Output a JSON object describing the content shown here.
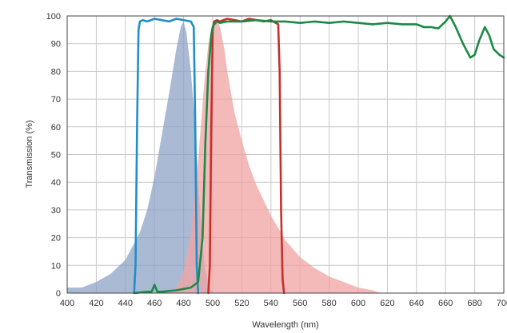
{
  "chart_data": {
    "type": "area",
    "xlabel": "Wavelength (nm)",
    "ylabel": "Transmission (%)",
    "xlim": [
      400,
      700
    ],
    "ylim": [
      0,
      100
    ],
    "x_ticks": [
      "400",
      "420",
      "440",
      "460",
      "480",
      "500",
      "520",
      "540",
      "560",
      "580",
      "600",
      "620",
      "640",
      "660",
      "680",
      "700"
    ],
    "y_ticks": [
      "0",
      "10",
      "20",
      "30",
      "40",
      "50",
      "60",
      "70",
      "80",
      "90",
      "100"
    ],
    "grid": true,
    "legend": "none",
    "colors": {
      "blue_fill": "#8ea3c7",
      "red_fill": "#f0a3a3",
      "blue_line": "#1f8fc9",
      "red_line": "#c62f2a",
      "green_line": "#1a8a46",
      "grid": "#c8c8c8",
      "frame": "#444444"
    },
    "series": [
      {
        "style": "filled-area",
        "color_key": "blue_fill",
        "x": [
          400,
          410,
          420,
          430,
          440,
          450,
          455,
          460,
          465,
          470,
          475,
          478,
          480,
          482,
          485,
          488,
          490,
          493,
          495,
          498,
          500
        ],
        "y": [
          2,
          2,
          4,
          7,
          12,
          22,
          30,
          42,
          57,
          72,
          88,
          96,
          98,
          94,
          80,
          60,
          40,
          18,
          8,
          2,
          0
        ]
      },
      {
        "style": "filled-area",
        "color_key": "red_fill",
        "x": [
          470,
          475,
          480,
          485,
          490,
          494,
          497,
          500,
          503,
          505,
          508,
          510,
          515,
          520,
          525,
          530,
          540,
          550,
          560,
          570,
          580,
          590,
          600,
          610,
          615
        ],
        "y": [
          0,
          2,
          8,
          22,
          48,
          75,
          90,
          98,
          99,
          96,
          88,
          80,
          65,
          55,
          46,
          39,
          28,
          19,
          13,
          9,
          6,
          4,
          2,
          1,
          0
        ]
      },
      {
        "style": "line",
        "color_key": "blue_line",
        "x": [
          446,
          447,
          448,
          449,
          450,
          452,
          455,
          460,
          465,
          470,
          475,
          480,
          485,
          487,
          488,
          489,
          490
        ],
        "y": [
          0,
          10,
          60,
          95,
          98,
          98.5,
          98,
          99,
          98.5,
          98,
          99,
          98.5,
          98,
          96,
          60,
          10,
          0
        ]
      },
      {
        "style": "line",
        "color_key": "red_line",
        "x": [
          497,
          498,
          499,
          500,
          501,
          503,
          505,
          510,
          515,
          520,
          525,
          530,
          535,
          540,
          545,
          546,
          547,
          548,
          549
        ],
        "y": [
          0,
          10,
          60,
          95,
          98,
          98.5,
          98,
          99,
          98.5,
          98,
          99,
          98.5,
          98,
          98.5,
          97,
          80,
          30,
          5,
          0
        ]
      },
      {
        "style": "line",
        "color_key": "green_line",
        "x": [
          446,
          455,
          458,
          460,
          462,
          465,
          475,
          485,
          490,
          493,
          495,
          497,
          499,
          500,
          501,
          503,
          505,
          510,
          520,
          530,
          540,
          550,
          560,
          570,
          580,
          590,
          600,
          610,
          620,
          630,
          640,
          645,
          650,
          655,
          660,
          663,
          667,
          672,
          677,
          680,
          683,
          687,
          690,
          693,
          697,
          700
        ],
        "y": [
          0,
          0.5,
          0.5,
          3,
          0.5,
          0.5,
          1,
          2,
          4,
          20,
          55,
          80,
          93,
          96,
          97,
          98,
          97.5,
          98,
          98,
          98.5,
          98,
          98,
          97.5,
          98,
          97.5,
          98,
          97.5,
          97,
          97.5,
          97,
          97,
          96,
          96,
          95.5,
          98,
          100,
          96,
          90,
          85,
          86,
          91,
          96,
          93,
          88,
          86,
          85
        ]
      }
    ]
  }
}
